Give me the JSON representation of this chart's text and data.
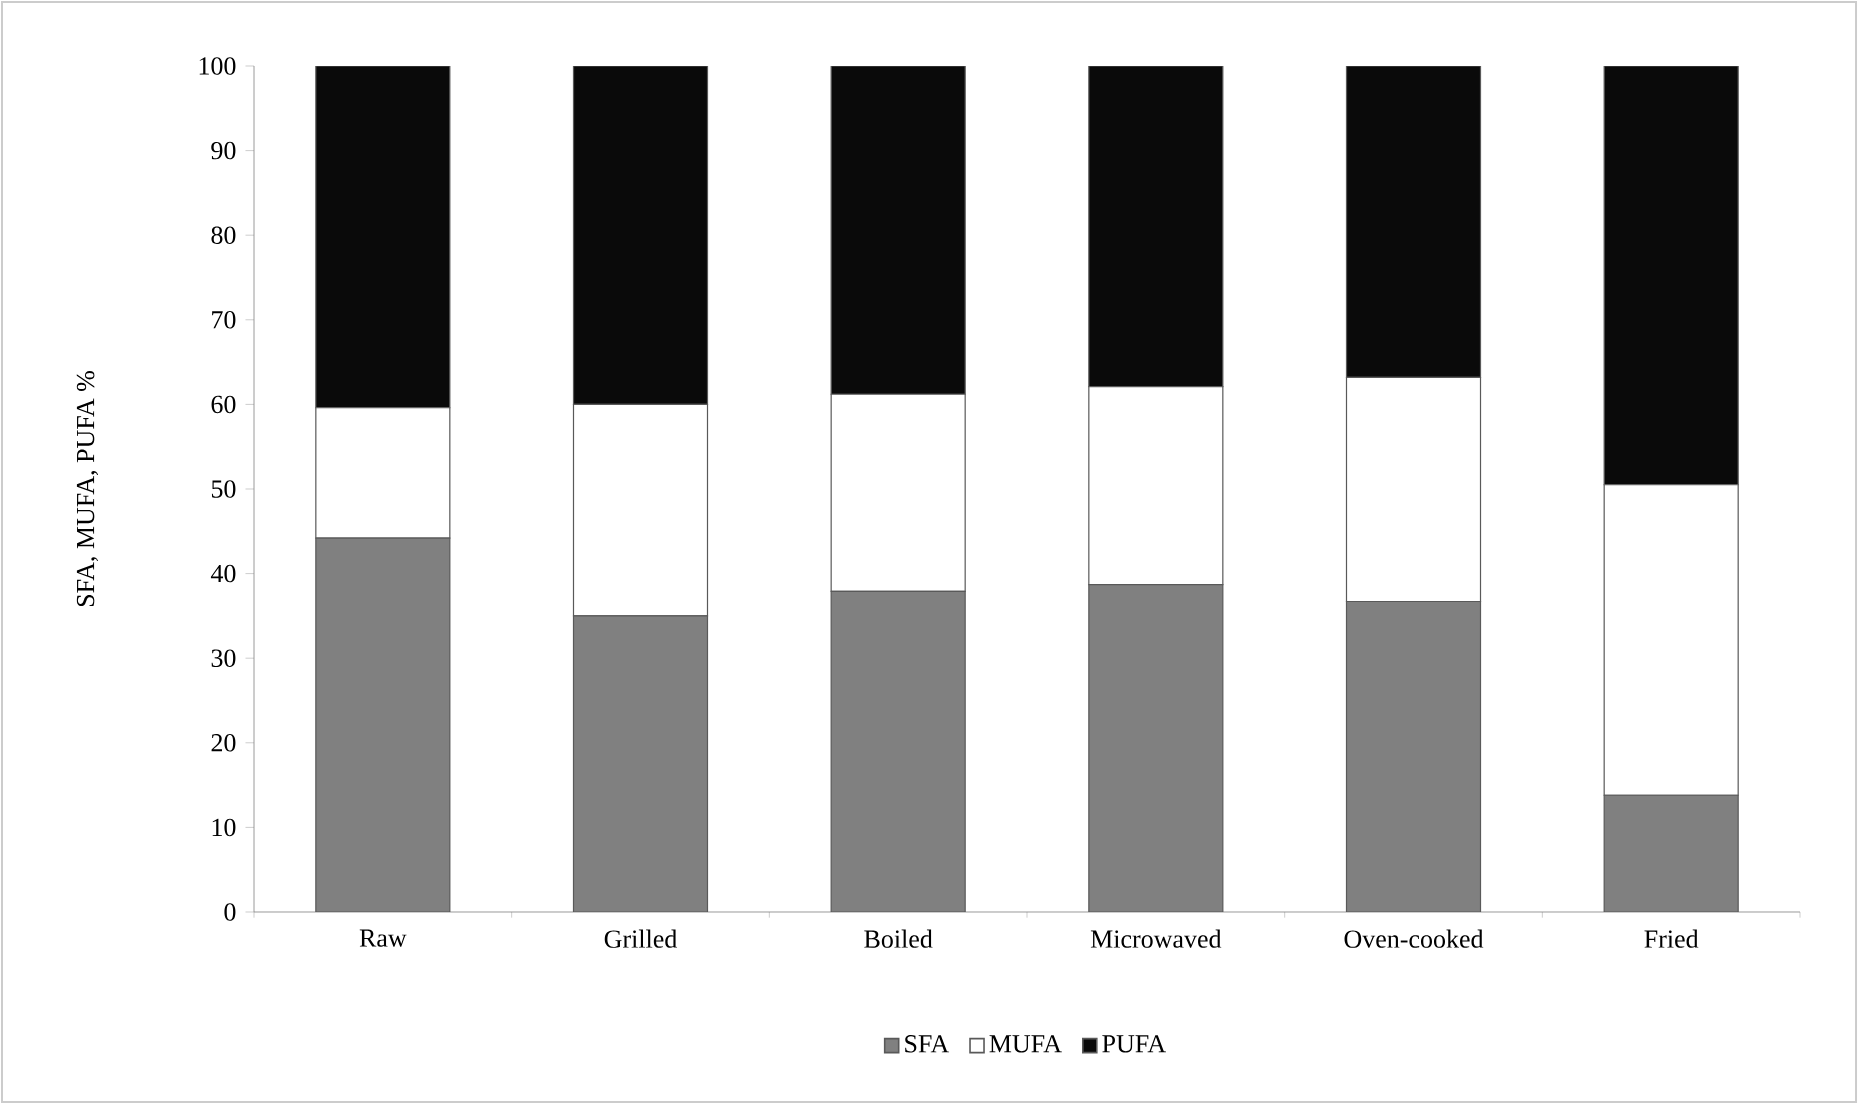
{
  "chart_data": {
    "type": "bar",
    "stacked": true,
    "ylabel": "SFA, MUFA, PUFA %",
    "categories": [
      "Raw",
      "Grilled",
      "Boiled",
      "Microwaved",
      "Oven-cooked",
      "Fried"
    ],
    "series": [
      {
        "name": "SFA",
        "color": "#808080",
        "values": [
          44.2,
          35.0,
          37.9,
          38.7,
          36.7,
          13.8
        ]
      },
      {
        "name": "MUFA",
        "color": "#ffffff",
        "values": [
          15.4,
          25.0,
          23.3,
          23.4,
          26.5,
          36.7
        ]
      },
      {
        "name": "PUFA",
        "color": "#0a0a0a",
        "values": [
          40.4,
          40.0,
          38.8,
          37.9,
          36.8,
          49.5
        ]
      }
    ],
    "ylim": [
      0,
      100
    ],
    "yticks": [
      0,
      10,
      20,
      30,
      40,
      50,
      60,
      70,
      80,
      90,
      100
    ],
    "grid": false,
    "legend": "bottom"
  }
}
